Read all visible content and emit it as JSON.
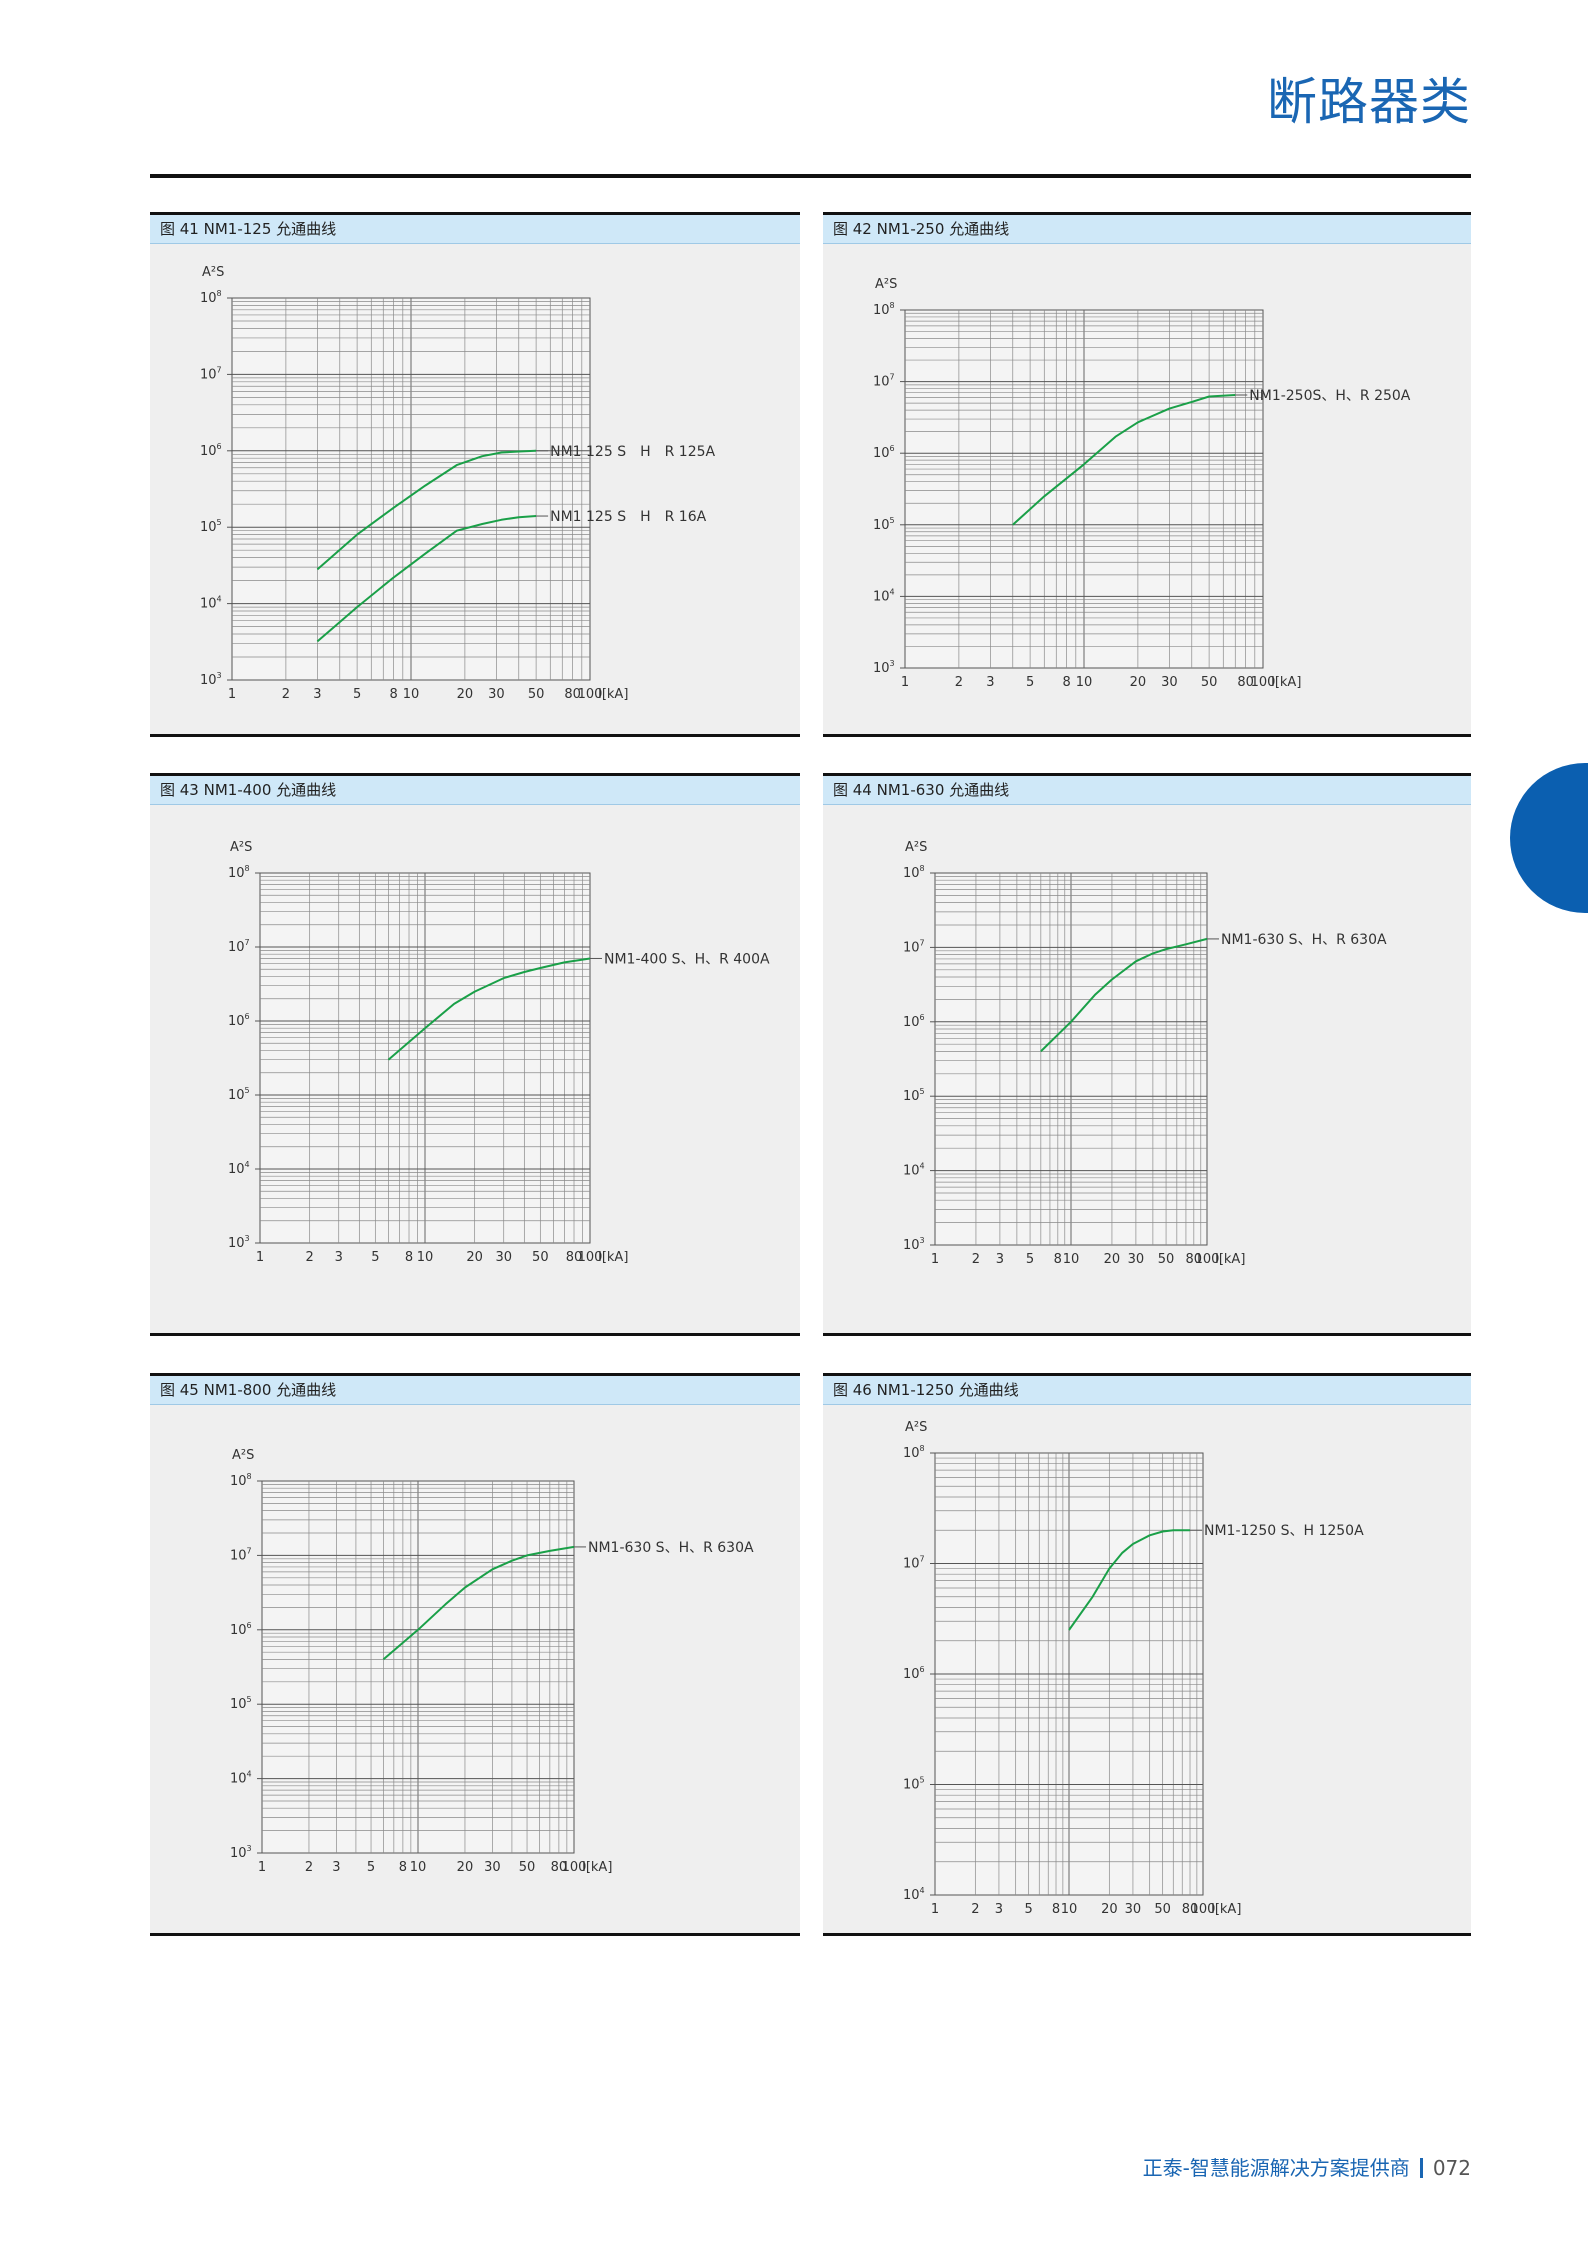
{
  "page": {
    "title": "断路器类",
    "footer_text": "正泰-智慧能源解决方案提供商",
    "page_number": "072",
    "accent_color": "#1a66b3",
    "curve_color": "#1aa048"
  },
  "chart_data": [
    {
      "type": "line",
      "title": "图 41 NM1-125 允通曲线",
      "ylabel": "A²S",
      "xlabel": "I[kA]",
      "x_scale": "log",
      "y_scale": "log",
      "xlim": [
        1,
        100
      ],
      "ylim": [
        1000,
        100000000
      ],
      "x_ticks": [
        "1",
        "2",
        "3",
        "5",
        "8",
        "10",
        "20",
        "30",
        "50",
        "80",
        "100"
      ],
      "x_tick_values": [
        1,
        2,
        3,
        5,
        8,
        10,
        20,
        30,
        50,
        80,
        100
      ],
      "y_ticks": [
        {
          "base": "10",
          "exp": "8"
        },
        {
          "base": "10",
          "exp": "7"
        },
        {
          "base": "10",
          "exp": "6"
        },
        {
          "base": "10",
          "exp": "5"
        },
        {
          "base": "10",
          "exp": "4"
        },
        {
          "base": "10",
          "exp": "3"
        }
      ],
      "series": [
        {
          "name": "NM1 125 S　H　R 125A",
          "x": [
            3,
            5,
            8,
            12,
            18,
            25,
            32,
            40,
            50
          ],
          "y": [
            28000,
            80000,
            180000,
            350000,
            650000,
            850000,
            950000,
            980000,
            1000000
          ]
        },
        {
          "name": "NM1 125 S　H　R 16A",
          "x": [
            3,
            5,
            8,
            12,
            18,
            25,
            32,
            40,
            50
          ],
          "y": [
            3200,
            9000,
            22000,
            45000,
            90000,
            110000,
            125000,
            135000,
            140000
          ]
        }
      ]
    },
    {
      "type": "line",
      "title": "图 42 NM1-250 允通曲线",
      "ylabel": "A²S",
      "xlabel": "I[kA]",
      "x_scale": "log",
      "y_scale": "log",
      "xlim": [
        1,
        100
      ],
      "ylim": [
        1000,
        100000000
      ],
      "x_ticks": [
        "1",
        "2",
        "3",
        "5",
        "8",
        "10",
        "20",
        "30",
        "50",
        "80",
        "100"
      ],
      "x_tick_values": [
        1,
        2,
        3,
        5,
        8,
        10,
        20,
        30,
        50,
        80,
        100
      ],
      "y_ticks": [
        {
          "base": "10",
          "exp": "8"
        },
        {
          "base": "10",
          "exp": "7"
        },
        {
          "base": "10",
          "exp": "6"
        },
        {
          "base": "10",
          "exp": "5"
        },
        {
          "base": "10",
          "exp": "4"
        },
        {
          "base": "10",
          "exp": "3"
        }
      ],
      "series": [
        {
          "name": "NM1-250S、H、R 250A",
          "x": [
            4,
            6,
            10,
            15,
            20,
            30,
            40,
            50,
            70
          ],
          "y": [
            100000,
            250000,
            700000,
            1700000,
            2700000,
            4200000,
            5200000,
            6200000,
            6500000
          ]
        }
      ]
    },
    {
      "type": "line",
      "title": "图 43 NM1-400 允通曲线",
      "ylabel": "A²S",
      "xlabel": "I[kA]",
      "x_scale": "log",
      "y_scale": "log",
      "xlim": [
        1,
        100
      ],
      "ylim": [
        1000,
        100000000
      ],
      "x_ticks": [
        "1",
        "2",
        "3",
        "5",
        "8",
        "10",
        "20",
        "30",
        "50",
        "80",
        "100"
      ],
      "x_tick_values": [
        1,
        2,
        3,
        5,
        8,
        10,
        20,
        30,
        50,
        80,
        100
      ],
      "y_ticks": [
        {
          "base": "10",
          "exp": "8"
        },
        {
          "base": "10",
          "exp": "7"
        },
        {
          "base": "10",
          "exp": "6"
        },
        {
          "base": "10",
          "exp": "5"
        },
        {
          "base": "10",
          "exp": "4"
        },
        {
          "base": "10",
          "exp": "3"
        }
      ],
      "series": [
        {
          "name": "NM1-400 S、H、R 400A",
          "x": [
            6,
            10,
            15,
            20,
            30,
            40,
            50,
            70,
            100
          ],
          "y": [
            300000,
            800000,
            1700000,
            2500000,
            3800000,
            4600000,
            5200000,
            6200000,
            7000000
          ]
        }
      ]
    },
    {
      "type": "line",
      "title": "图 44 NM1-630 允通曲线",
      "ylabel": "A²S",
      "xlabel": "I[kA]",
      "x_scale": "log",
      "y_scale": "log",
      "xlim": [
        1,
        100
      ],
      "ylim": [
        1000,
        100000000
      ],
      "x_ticks": [
        "1",
        "2",
        "3",
        "5",
        "8",
        "10",
        "20",
        "30",
        "50",
        "80",
        "100"
      ],
      "x_tick_values": [
        1,
        2,
        3,
        5,
        8,
        10,
        20,
        30,
        50,
        80,
        100
      ],
      "y_ticks": [
        {
          "base": "10",
          "exp": "8"
        },
        {
          "base": "10",
          "exp": "7"
        },
        {
          "base": "10",
          "exp": "6"
        },
        {
          "base": "10",
          "exp": "5"
        },
        {
          "base": "10",
          "exp": "4"
        },
        {
          "base": "10",
          "exp": "3"
        }
      ],
      "series": [
        {
          "name": "NM1-630 S、H、R 630A",
          "x": [
            6,
            10,
            15,
            20,
            30,
            40,
            50,
            70,
            100
          ],
          "y": [
            400000,
            1000000,
            2300000,
            3700000,
            6500000,
            8300000,
            9500000,
            11000000,
            13000000
          ]
        }
      ]
    },
    {
      "type": "line",
      "title": "图 45 NM1-800 允通曲线",
      "ylabel": "A²S",
      "xlabel": "I[kA]",
      "x_scale": "log",
      "y_scale": "log",
      "xlim": [
        1,
        100
      ],
      "ylim": [
        1000,
        100000000
      ],
      "x_ticks": [
        "1",
        "2",
        "3",
        "5",
        "8",
        "10",
        "20",
        "30",
        "50",
        "80",
        "100"
      ],
      "x_tick_values": [
        1,
        2,
        3,
        5,
        8,
        10,
        20,
        30,
        50,
        80,
        100
      ],
      "y_ticks": [
        {
          "base": "10",
          "exp": "8"
        },
        {
          "base": "10",
          "exp": "7"
        },
        {
          "base": "10",
          "exp": "6"
        },
        {
          "base": "10",
          "exp": "5"
        },
        {
          "base": "10",
          "exp": "4"
        },
        {
          "base": "10",
          "exp": "3"
        }
      ],
      "series": [
        {
          "name": "NM1-630 S、H、R 630A",
          "x": [
            6,
            10,
            15,
            20,
            30,
            40,
            50,
            70,
            100
          ],
          "y": [
            400000,
            1000000,
            2200000,
            3700000,
            6500000,
            8500000,
            10000000,
            11500000,
            13000000
          ]
        }
      ]
    },
    {
      "type": "line",
      "title": "图 46 NM1-1250 允通曲线",
      "ylabel": "A²S",
      "xlabel": "I[kA]",
      "x_scale": "log",
      "y_scale": "log",
      "xlim": [
        1,
        100
      ],
      "ylim": [
        10000,
        100000000
      ],
      "x_ticks": [
        "1",
        "2",
        "3",
        "5",
        "8",
        "10",
        "20",
        "30",
        "50",
        "80",
        "100"
      ],
      "x_tick_values": [
        1,
        2,
        3,
        5,
        8,
        10,
        20,
        30,
        50,
        80,
        100
      ],
      "y_ticks": [
        {
          "base": "10",
          "exp": "8"
        },
        {
          "base": "10",
          "exp": "7"
        },
        {
          "base": "10",
          "exp": "6"
        },
        {
          "base": "10",
          "exp": "5"
        },
        {
          "base": "10",
          "exp": "4"
        }
      ],
      "series": [
        {
          "name": "NM1-1250 S、H 1250A",
          "x": [
            10,
            15,
            20,
            25,
            30,
            40,
            50,
            60,
            80
          ],
          "y": [
            2500000,
            5000000,
            9000000,
            12500000,
            15000000,
            18000000,
            19500000,
            20000000,
            20000000
          ]
        }
      ]
    }
  ]
}
